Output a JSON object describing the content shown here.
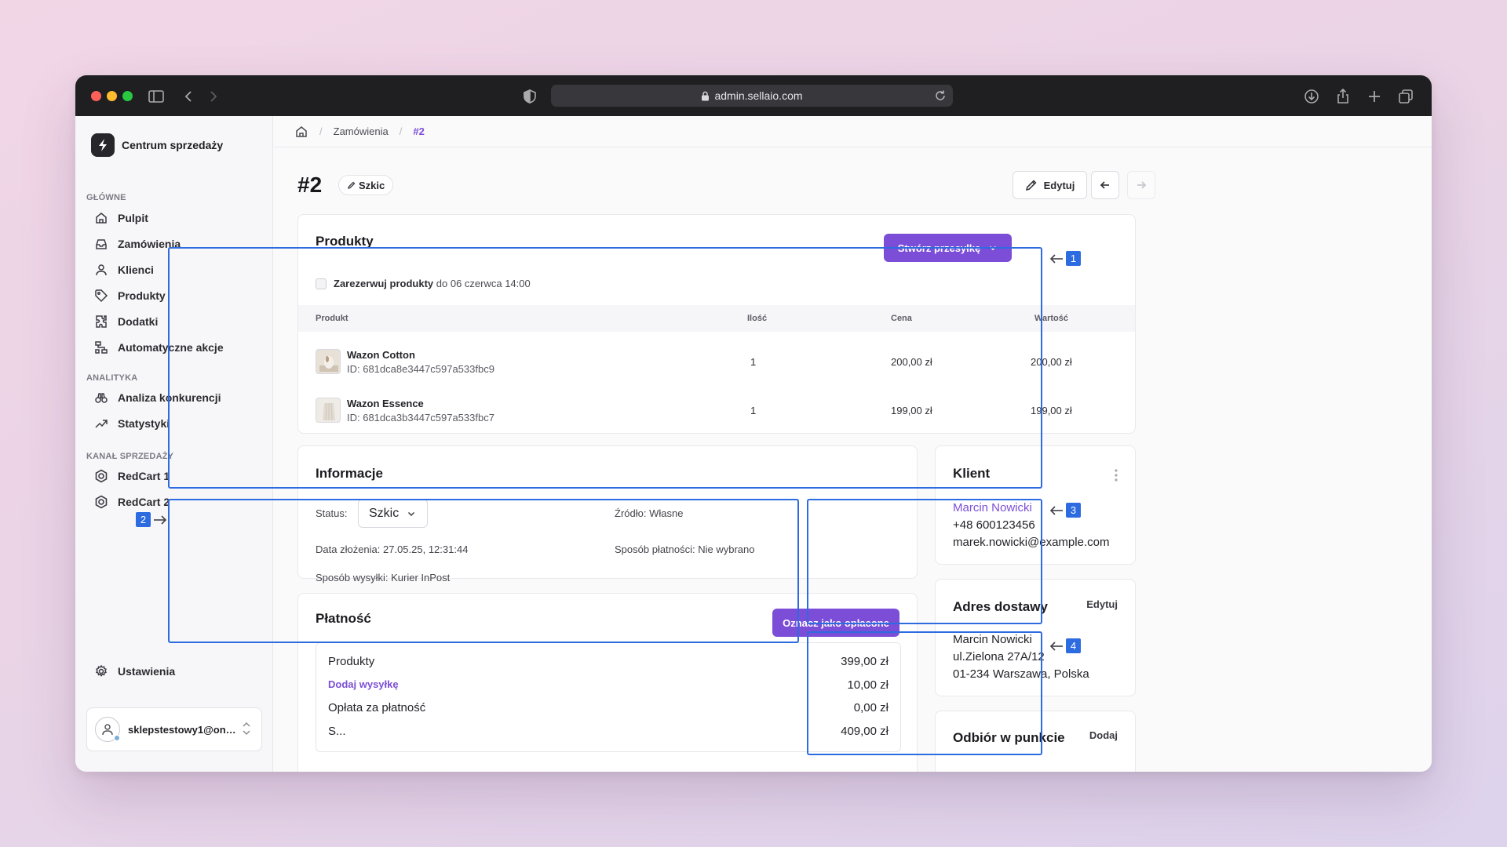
{
  "browser": {
    "url": "admin.sellaio.com",
    "dot_colors": [
      "#fe5f57",
      "#febc2e",
      "#28c840"
    ]
  },
  "sidebar": {
    "brand": "Centrum sprzedaży",
    "sections": [
      {
        "title": "GŁÓWNE",
        "items": [
          {
            "label": "Pulpit",
            "icon": "home-icon"
          },
          {
            "label": "Zamówienia",
            "icon": "inbox-icon"
          },
          {
            "label": "Klienci",
            "icon": "user-icon"
          },
          {
            "label": "Produkty",
            "icon": "tag-icon"
          },
          {
            "label": "Dodatki",
            "icon": "puzzle-icon"
          },
          {
            "label": "Automatyczne akcje",
            "icon": "workflow-icon"
          }
        ]
      },
      {
        "title": "ANALITYKA",
        "items": [
          {
            "label": "Analiza konkurencji",
            "icon": "binoculars-icon"
          },
          {
            "label": "Statystyki",
            "icon": "trending-up-icon"
          }
        ]
      },
      {
        "title": "KANAŁ SPRZEDAŻY",
        "items": [
          {
            "label": "RedCart 1",
            "icon": "channel-icon"
          },
          {
            "label": "RedCart 2",
            "icon": "channel-icon"
          }
        ]
      }
    ],
    "settings_label": "Ustawienia",
    "account_email": "sklepstestowy1@onet..."
  },
  "breadcrumb": {
    "section": "Zamówienia",
    "current": "#2"
  },
  "order": {
    "title": "#2",
    "status_badge": "Szkic",
    "edit_label": "Edytuj"
  },
  "products": {
    "title": "Produkty",
    "create_shipment": "Stwórz przesyłkę",
    "reserve_label": "Zarezerwuj produkty",
    "reserve_until": "do 06 czerwca 14:00",
    "columns": [
      "Produkt",
      "Ilość",
      "Cena",
      "Wartość"
    ],
    "rows": [
      {
        "name": "Wazon Cotton",
        "id": "ID: 681dca8e3447c597a533fbc9",
        "qty": "1",
        "price": "200,00 zł",
        "value": "200,00 zł"
      },
      {
        "name": "Wazon Essence",
        "id": "ID: 681dca3b3447c597a533fbc7",
        "qty": "1",
        "price": "199,00 zł",
        "value": "199,00 zł"
      }
    ]
  },
  "info": {
    "title": "Informacje",
    "status_label": "Status:",
    "status_value": "Szkic",
    "source": "Źródło: Własne",
    "created": "Data złożenia: 27.05.25, 12:31:44",
    "payment_method": "Sposób płatności: Nie wybrano",
    "shipping_method": "Sposób wysyłki: Kurier InPost"
  },
  "payment": {
    "title": "Płatność",
    "mark_paid": "Oznacz jako opłacone",
    "rows": [
      {
        "label": "Produkty",
        "value": "399,00 zł"
      },
      {
        "label": "Dodaj wysyłkę",
        "value": "10,00 zł"
      },
      {
        "label": "Opłata za płatność",
        "value": "0,00 zł"
      },
      {
        "label": "S...",
        "value": "409,00 zł"
      }
    ]
  },
  "client": {
    "title": "Klient",
    "name": "Marcin Nowicki",
    "phone": "+48 600123456",
    "email": "marek.nowicki@example.com"
  },
  "address": {
    "title": "Adres dostawy",
    "edit": "Edytuj",
    "lines": [
      "Marcin Nowicki",
      "ul.Zielona 27A/12",
      "01-234 Warszawa, Polska"
    ]
  },
  "pickup": {
    "title": "Odbiór w punkcie",
    "add": "Dodaj"
  },
  "markers": [
    "1",
    "2",
    "3",
    "4"
  ],
  "colors": {
    "accent": "#7c4ed8",
    "highlight": "#2d6be0"
  }
}
